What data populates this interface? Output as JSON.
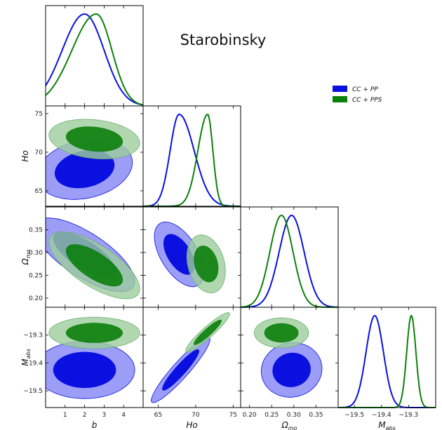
{
  "chart_data": {
    "type": "corner",
    "title": "Starobinsky",
    "legend_placement": "upper-right",
    "colors": {
      "CC + PP": "#0a10e0",
      "CC + PPS": "#0c800c"
    },
    "series": [
      {
        "name": "CC + PP"
      },
      {
        "name": "CC + PPS"
      }
    ],
    "parameters": [
      {
        "name": "b",
        "label": "b",
        "range": [
          0,
          5.0
        ],
        "ticks": [
          1,
          2,
          3,
          4
        ],
        "tick_labels": [
          "1",
          "2",
          "3",
          "4"
        ],
        "mean": {
          "CC + PP": 2.0,
          "CC + PPS": 2.6
        }
      },
      {
        "name": "Ho",
        "label": "Ho",
        "range": [
          63,
          76
        ],
        "ticks": [
          65,
          70,
          75
        ],
        "tick_labels": [
          "65",
          "70",
          "75"
        ],
        "mean": {
          "CC + PP": 67.8,
          "CC + PPS": 71.6
        }
      },
      {
        "name": "Omega_mo",
        "label": "Ωmo",
        "range": [
          0.18,
          0.4
        ],
        "ticks": [
          0.2,
          0.25,
          0.3,
          0.35
        ],
        "tick_labels": [
          "0.20",
          "0.25",
          "0.30",
          "0.35"
        ],
        "mean": {
          "CC + PP": 0.295,
          "CC + PPS": 0.272
        }
      },
      {
        "name": "M_abs",
        "label": "Mabs",
        "range": [
          -19.56,
          -19.2
        ],
        "ticks": [
          -19.5,
          -19.4,
          -19.3
        ],
        "tick_labels": [
          "−19.5",
          "−19.4",
          "−19.3"
        ],
        "mean": {
          "CC + PP": -19.425,
          "CC + PPS": -19.29
        }
      }
    ],
    "panels": [
      {
        "pair": [
          "b",
          "Ho"
        ]
      },
      {
        "pair": [
          "b",
          "Omega_mo"
        ]
      },
      {
        "pair": [
          "Ho",
          "Omega_mo"
        ]
      },
      {
        "pair": [
          "b",
          "M_abs"
        ]
      },
      {
        "pair": [
          "Ho",
          "M_abs"
        ]
      },
      {
        "pair": [
          "Omega_mo",
          "M_abs"
        ]
      }
    ]
  }
}
